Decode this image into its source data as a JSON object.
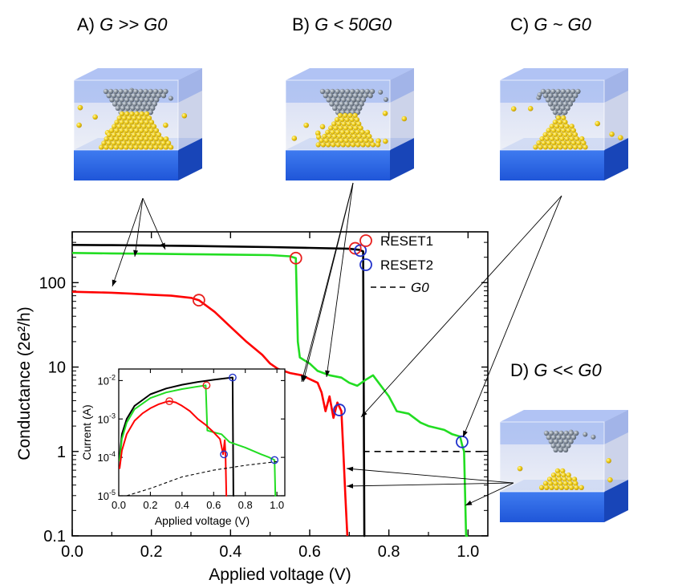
{
  "panels": [
    {
      "label": "A)",
      "condition": "G >> G0"
    },
    {
      "label": "B)",
      "condition": "G < 50G0"
    },
    {
      "label": "C)",
      "condition": "G ~ G0"
    },
    {
      "label": "D)",
      "condition": "G << G0"
    }
  ],
  "colors": {
    "reset1": "#e8201e",
    "reset2": "#2233cc",
    "green": "#22dd22",
    "black": "#000000",
    "slab": "#2f6ae8",
    "dielectric": "#b8c6ef",
    "atom_gold": "#f2d21c",
    "atom_grey": "#7f8a96"
  },
  "chart_data": [
    {
      "type": "line",
      "xlabel": "Applied voltage (V)",
      "ylabel": "Conductance (2e²/h)",
      "xlim": [
        0.0,
        1.05
      ],
      "ylim": [
        0.1,
        400
      ],
      "yscale": "log",
      "xticks": [
        "0.0",
        "0.2",
        "0.4",
        "0.6",
        "0.8",
        "1.0"
      ],
      "yticks": [
        "0.1",
        "1",
        "10",
        "100"
      ],
      "legend": [
        "RESET1",
        "RESET2",
        "G0"
      ],
      "legend_position": "top-right",
      "series": [
        {
          "color": "black",
          "x": [
            0.0,
            0.1,
            0.2,
            0.3,
            0.4,
            0.5,
            0.6,
            0.7,
            0.725,
            0.735,
            0.738,
            0.74
          ],
          "y": [
            280,
            278,
            275,
            272,
            268,
            264,
            258,
            252,
            245,
            235,
            0.1,
            0.1
          ]
        },
        {
          "color": "green",
          "x": [
            0.0,
            0.1,
            0.2,
            0.3,
            0.4,
            0.5,
            0.55,
            0.565,
            0.57,
            0.575,
            0.6,
            0.62,
            0.65,
            0.68,
            0.7,
            0.72,
            0.74,
            0.76,
            0.8,
            0.82,
            0.85,
            0.88,
            0.9,
            0.92,
            0.94,
            0.96,
            0.98,
            0.985,
            0.99,
            0.995,
            1.0
          ],
          "y": [
            225,
            222,
            220,
            217,
            215,
            212,
            205,
            195,
            20,
            13,
            11,
            9,
            8,
            7.5,
            6.5,
            6,
            7,
            8,
            4.5,
            3,
            2.8,
            2.2,
            2,
            1.9,
            1.8,
            1.6,
            1.5,
            1.2,
            1.0,
            0.1,
            0.1
          ]
        },
        {
          "color": "red",
          "x": [
            0.0,
            0.05,
            0.1,
            0.15,
            0.2,
            0.25,
            0.3,
            0.32,
            0.36,
            0.4,
            0.44,
            0.48,
            0.5,
            0.52,
            0.55,
            0.58,
            0.6,
            0.62,
            0.63,
            0.64,
            0.65,
            0.66,
            0.67,
            0.68,
            0.685,
            0.69,
            0.695
          ],
          "y": [
            78,
            77,
            76,
            74,
            72,
            70,
            66,
            62,
            45,
            30,
            20,
            14,
            11,
            9.5,
            8.5,
            8,
            7.2,
            6.5,
            5,
            3,
            4.5,
            2.5,
            3.8,
            3,
            1,
            0.3,
            0.1
          ]
        }
      ],
      "markers": [
        {
          "series": "RESET1",
          "x": 0.32,
          "y": 62
        },
        {
          "series": "RESET1",
          "x": 0.565,
          "y": 195
        },
        {
          "series": "RESET1",
          "x": 0.715,
          "y": 255
        },
        {
          "series": "RESET2",
          "x": 0.728,
          "y": 240
        },
        {
          "series": "RESET2",
          "x": 0.675,
          "y": 3.1
        },
        {
          "series": "RESET2",
          "x": 0.985,
          "y": 1.3
        }
      ],
      "g0_level": 1.0
    },
    {
      "type": "line",
      "xlabel": "Applied voltage (V)",
      "ylabel": "Current (A)",
      "xlim": [
        0.0,
        1.05
      ],
      "ylim": [
        1e-05,
        0.02
      ],
      "yscale": "log",
      "xticks": [
        "0.0",
        "0.2",
        "0.4",
        "0.6",
        "0.8",
        "1.0"
      ],
      "yticks": [
        "10-5",
        "10-4",
        "10-3",
        "10-2"
      ],
      "series": [
        {
          "color": "black",
          "x": [
            0.005,
            0.02,
            0.05,
            0.1,
            0.2,
            0.3,
            0.4,
            0.5,
            0.6,
            0.7,
            0.72,
            0.725,
            0.73
          ],
          "y": [
            0.0001,
            0.0004,
            0.001,
            0.0022,
            0.0044,
            0.0062,
            0.0078,
            0.0092,
            0.0105,
            0.0118,
            0.012,
            1e-05,
            1e-05
          ]
        },
        {
          "color": "green",
          "x": [
            0.005,
            0.02,
            0.05,
            0.1,
            0.2,
            0.3,
            0.4,
            0.5,
            0.55,
            0.56,
            0.6,
            0.65,
            0.7,
            0.8,
            0.9,
            0.95,
            0.985,
            0.99,
            0.995
          ],
          "y": [
            8e-05,
            0.0003,
            0.0008,
            0.0018,
            0.0035,
            0.0049,
            0.006,
            0.007,
            0.0075,
            0.0005,
            0.00045,
            0.0004,
            0.00025,
            0.00018,
            0.00012,
            0.0001,
            8.5e-05,
            1e-05,
            1e-05
          ]
        },
        {
          "color": "red",
          "x": [
            0.005,
            0.02,
            0.05,
            0.1,
            0.15,
            0.2,
            0.25,
            0.3,
            0.32,
            0.36,
            0.4,
            0.45,
            0.5,
            0.55,
            0.6,
            0.64,
            0.66,
            0.67,
            0.675,
            0.68,
            0.685
          ],
          "y": [
            5e-05,
            0.00015,
            0.0004,
            0.0009,
            0.0014,
            0.0019,
            0.0024,
            0.0028,
            0.0029,
            0.0027,
            0.0022,
            0.0016,
            0.001,
            0.0007,
            0.00045,
            0.0003,
            0.00012,
            0.00028,
            0.00011,
            1e-05,
            1e-05
          ]
        },
        {
          "color": "black",
          "dashed": true,
          "x": [
            0.05,
            0.2,
            0.4,
            0.6,
            0.8,
            1.0
          ],
          "y": [
            3.9e-06,
            1.55e-05,
            3.1e-05,
            4.65e-05,
            6.2e-05,
            7.75e-05
          ]
        }
      ],
      "markers": [
        {
          "series": "RESET1",
          "x": 0.32,
          "y": 0.0029
        },
        {
          "series": "RESET1",
          "x": 0.555,
          "y": 0.0075
        },
        {
          "series": "RESET2",
          "x": 0.72,
          "y": 0.012
        },
        {
          "series": "RESET2",
          "x": 0.665,
          "y": 0.00012
        },
        {
          "series": "RESET2",
          "x": 0.985,
          "y": 8.5e-05
        }
      ]
    }
  ]
}
